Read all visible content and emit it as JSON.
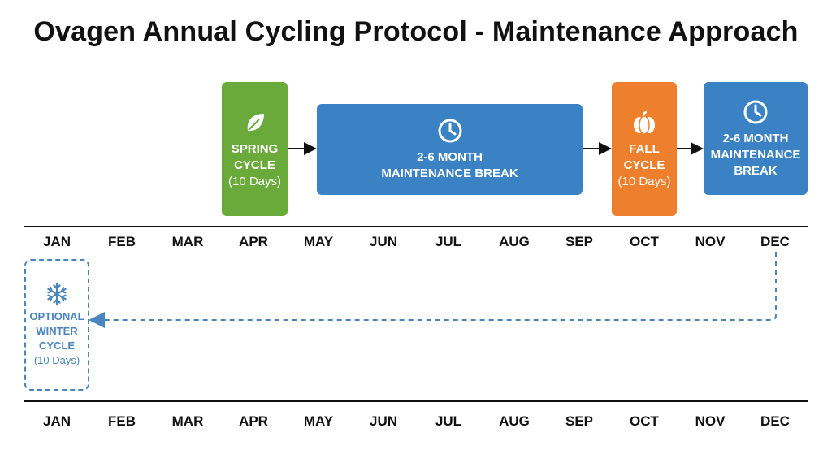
{
  "title": "Ovagen Annual Cycling Protocol - Maintenance Approach",
  "months": [
    "JAN",
    "FEB",
    "MAR",
    "APR",
    "MAY",
    "JUN",
    "JUL",
    "AUG",
    "SEP",
    "OCT",
    "NOV",
    "DEC"
  ],
  "spring": {
    "line1": "SPRING",
    "line2": "CYCLE",
    "line3": "(10 Days)"
  },
  "break1": {
    "line1": "2-6 MONTH",
    "line2": "MAINTENANCE BREAK"
  },
  "fall": {
    "line1": "FALL",
    "line2": "CYCLE",
    "line3": "(10 Days)"
  },
  "break2": {
    "line1": "2-6 MONTH",
    "line2": "MAINTENANCE",
    "line3": "BREAK"
  },
  "winter": {
    "line1": "OPTIONAL",
    "line2": "WINTER",
    "line3": "CYCLE",
    "line4": "(10 Days)"
  },
  "colors": {
    "green": "#6aaa3a",
    "blue": "#3b82c4",
    "orange": "#ee7f2d",
    "dashed": "#4a86bd"
  },
  "icons": {
    "spring": "leaf-icon",
    "break1": "clock-icon",
    "fall": "pumpkin-icon",
    "break2": "clock-icon",
    "winter": "snowflake-icon"
  }
}
